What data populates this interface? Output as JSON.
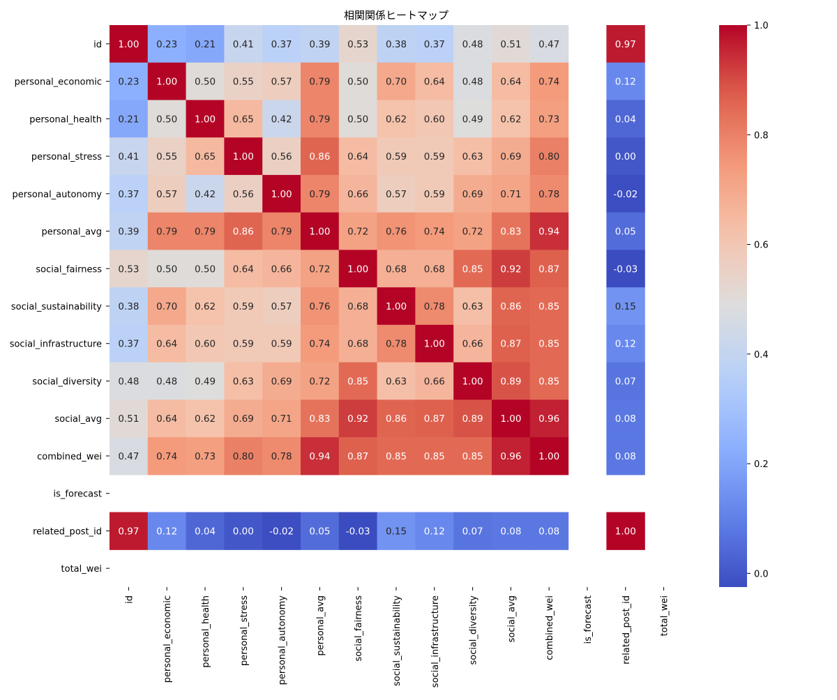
{
  "chart_data": {
    "type": "heatmap",
    "title": "相関関係ヒートマップ",
    "labels": [
      "id",
      "personal_economic",
      "personal_health",
      "personal_stress",
      "personal_autonomy",
      "personal_avg",
      "social_fairness",
      "social_sustainability",
      "social_infrastructure",
      "social_diversity",
      "social_avg",
      "combined_wei",
      "is_forecast",
      "related_post_id",
      "total_wei"
    ],
    "values": [
      [
        1.0,
        0.23,
        0.21,
        0.41,
        0.37,
        0.39,
        0.53,
        0.38,
        0.37,
        0.48,
        0.51,
        0.47,
        null,
        0.97,
        null
      ],
      [
        0.23,
        1.0,
        0.5,
        0.55,
        0.57,
        0.79,
        0.5,
        0.7,
        0.64,
        0.48,
        0.64,
        0.74,
        null,
        0.12,
        null
      ],
      [
        0.21,
        0.5,
        1.0,
        0.65,
        0.42,
        0.79,
        0.5,
        0.62,
        0.6,
        0.49,
        0.62,
        0.73,
        null,
        0.04,
        null
      ],
      [
        0.41,
        0.55,
        0.65,
        1.0,
        0.56,
        0.86,
        0.64,
        0.59,
        0.59,
        0.63,
        0.69,
        0.8,
        null,
        0.0,
        null
      ],
      [
        0.37,
        0.57,
        0.42,
        0.56,
        1.0,
        0.79,
        0.66,
        0.57,
        0.59,
        0.69,
        0.71,
        0.78,
        null,
        -0.02,
        null
      ],
      [
        0.39,
        0.79,
        0.79,
        0.86,
        0.79,
        1.0,
        0.72,
        0.76,
        0.74,
        0.72,
        0.83,
        0.94,
        null,
        0.05,
        null
      ],
      [
        0.53,
        0.5,
        0.5,
        0.64,
        0.66,
        0.72,
        1.0,
        0.68,
        0.68,
        0.85,
        0.92,
        0.87,
        null,
        -0.03,
        null
      ],
      [
        0.38,
        0.7,
        0.62,
        0.59,
        0.57,
        0.76,
        0.68,
        1.0,
        0.78,
        0.63,
        0.86,
        0.85,
        null,
        0.15,
        null
      ],
      [
        0.37,
        0.64,
        0.6,
        0.59,
        0.59,
        0.74,
        0.68,
        0.78,
        1.0,
        0.66,
        0.87,
        0.85,
        null,
        0.12,
        null
      ],
      [
        0.48,
        0.48,
        0.49,
        0.63,
        0.69,
        0.72,
        0.85,
        0.63,
        0.66,
        1.0,
        0.89,
        0.85,
        null,
        0.07,
        null
      ],
      [
        0.51,
        0.64,
        0.62,
        0.69,
        0.71,
        0.83,
        0.92,
        0.86,
        0.87,
        0.89,
        1.0,
        0.96,
        null,
        0.08,
        null
      ],
      [
        0.47,
        0.74,
        0.73,
        0.8,
        0.78,
        0.94,
        0.87,
        0.85,
        0.85,
        0.85,
        0.96,
        1.0,
        null,
        0.08,
        null
      ],
      [
        null,
        null,
        null,
        null,
        null,
        null,
        null,
        null,
        null,
        null,
        null,
        null,
        null,
        null,
        null
      ],
      [
        0.97,
        0.12,
        0.04,
        0.0,
        -0.02,
        0.05,
        -0.03,
        0.15,
        0.12,
        0.07,
        0.08,
        0.08,
        null,
        1.0,
        null
      ],
      [
        null,
        null,
        null,
        null,
        null,
        null,
        null,
        null,
        null,
        null,
        null,
        null,
        null,
        null,
        null
      ]
    ],
    "colormap": "coolwarm",
    "vmin": -0.025,
    "vmax": 1.0,
    "colorbar_ticks": [
      "0.0",
      "0.2",
      "0.4",
      "0.6",
      "0.8",
      "1.0"
    ],
    "annotation_format": "2 decimals",
    "legend_placement": "right"
  }
}
